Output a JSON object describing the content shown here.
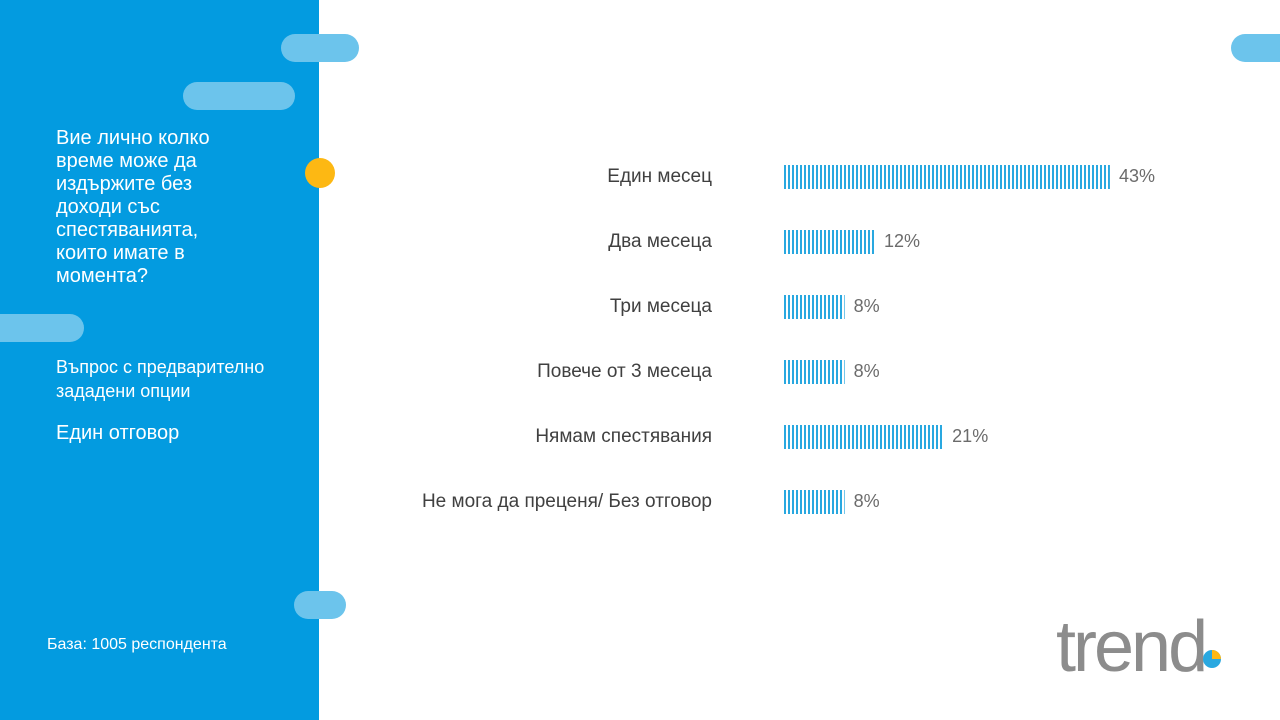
{
  "panel": {
    "question": "Вие лично колко време може да издържите без доходи със спестяванията, които имате в момента?",
    "question_type": "Въпрос с предварително зададени опции",
    "answer_type": "Един отговор",
    "base": "База: 1005 респондента"
  },
  "logo": "trend",
  "chart_data": {
    "type": "bar",
    "orientation": "horizontal",
    "categories": [
      "Един месец",
      "Два месеца",
      "Три месеца",
      "Повече от 3 месеца",
      "Нямам спестявания",
      "Не мога да преценя/ Без отговор"
    ],
    "values": [
      43,
      12,
      8,
      8,
      21,
      8
    ],
    "value_labels": [
      "43%",
      "12%",
      "8%",
      "8%",
      "21%",
      "8%"
    ],
    "color": "#29a8e0"
  }
}
